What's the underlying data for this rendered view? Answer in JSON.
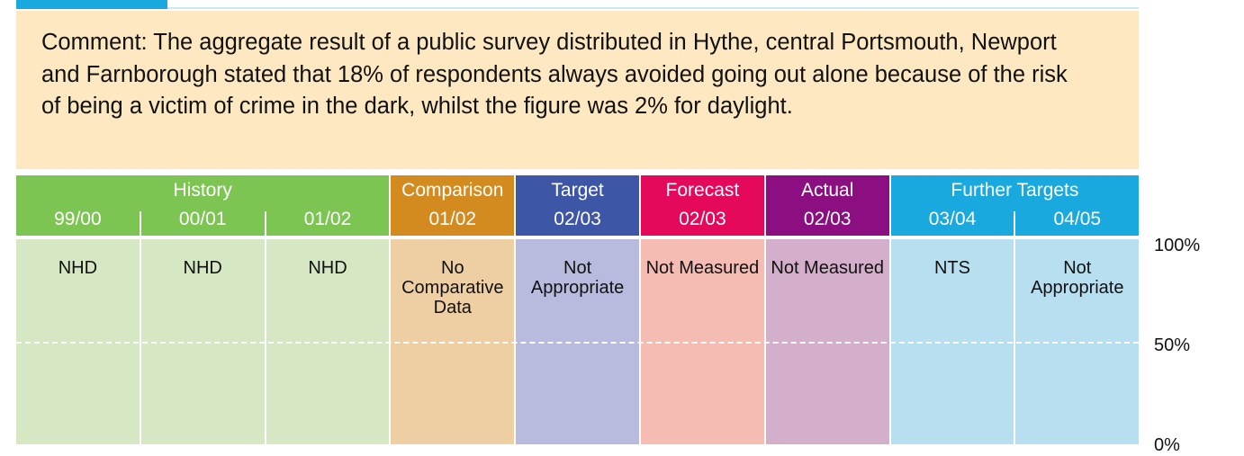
{
  "comment": "Comment: The aggregate result of a public survey distributed in Hythe, central Portsmouth, Newport and Farnborough stated that 18% of respondents always avoided going out alone because of the risk of being a victim of crime in the dark, whilst the figure was 2% for daylight.",
  "groups": [
    {
      "label": "History",
      "color": "#7dc552",
      "light": "#d5e8c3",
      "columns": [
        {
          "period": "99/00",
          "text": "NHD"
        },
        {
          "period": "00/01",
          "text": "NHD"
        },
        {
          "period": "01/02",
          "text": "NHD"
        }
      ]
    },
    {
      "label": "Comparison",
      "color": "#d38a1e",
      "light": "#edcfa3",
      "columns": [
        {
          "period": "01/02",
          "text": "No Comparative Data"
        }
      ]
    },
    {
      "label": "Target",
      "color": "#3d56a6",
      "light": "#b8bbdd",
      "columns": [
        {
          "period": "02/03",
          "text": "Not Appropriate"
        }
      ]
    },
    {
      "label": "Forecast",
      "color": "#e4095a",
      "light": "#f5bcb4",
      "columns": [
        {
          "period": "02/03",
          "text": "Not Measured"
        }
      ]
    },
    {
      "label": "Actual",
      "color": "#8b0f80",
      "light": "#d4afcb",
      "columns": [
        {
          "period": "02/03",
          "text": "Not Measured"
        }
      ]
    },
    {
      "label": "Further Targets",
      "color": "#1aa9de",
      "light": "#b7dff0",
      "columns": [
        {
          "period": "03/04",
          "text": "NTS"
        },
        {
          "period": "04/05",
          "text": "Not Appropriate"
        }
      ]
    }
  ],
  "axis_labels": [
    "100%",
    "50%",
    "0%"
  ]
}
